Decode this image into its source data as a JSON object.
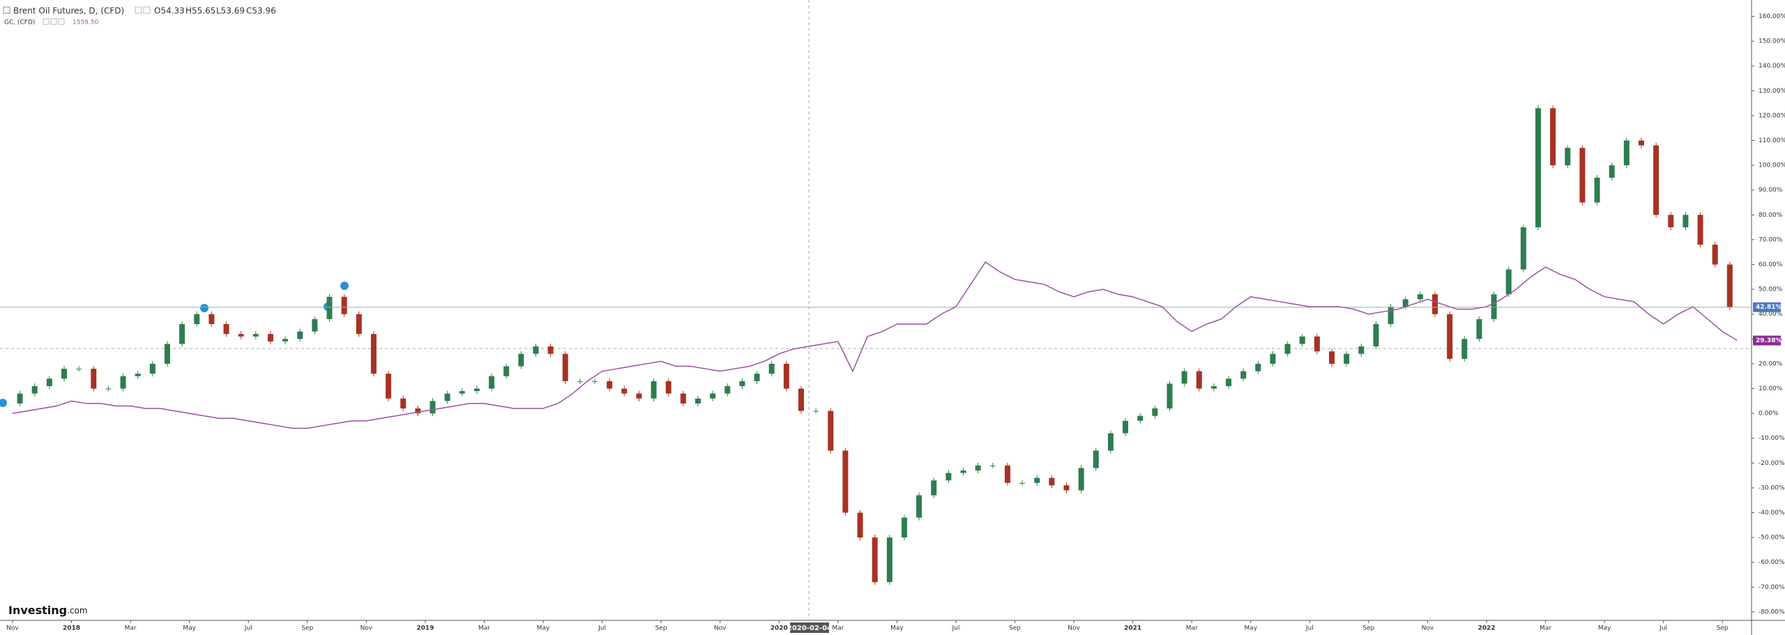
{
  "chart_data": {
    "type": "candle-line",
    "header": {
      "open": "O54.33",
      "high": "H55.65",
      "low": "L53.69",
      "close": "C53.96",
      "gc_last": "1559.50"
    },
    "crosshair_label": "2020-02-04",
    "logo": {
      "brand": "Investing",
      "suffix": ".com"
    },
    "categories": [
      "Nov",
      null,
      null,
      null,
      "2018",
      null,
      null,
      null,
      "Mar",
      null,
      null,
      null,
      "May",
      null,
      null,
      null,
      "Jul",
      null,
      null,
      null,
      "Sep",
      null,
      null,
      null,
      "Nov",
      null,
      null,
      null,
      "2019",
      null,
      null,
      null,
      "Mar",
      null,
      null,
      null,
      "May",
      null,
      null,
      null,
      "Jul",
      null,
      null,
      null,
      "Sep",
      null,
      null,
      null,
      "Nov",
      null,
      null,
      null,
      "2020",
      null,
      null,
      null,
      "Mar",
      null,
      null,
      null,
      "May",
      null,
      null,
      null,
      "Jul",
      null,
      null,
      null,
      "Sep",
      null,
      null,
      null,
      "Nov",
      null,
      null,
      null,
      "2021",
      null,
      null,
      null,
      "Mar",
      null,
      null,
      null,
      "May",
      null,
      null,
      null,
      "Jul",
      null,
      null,
      null,
      "Sep",
      null,
      null,
      null,
      "Nov",
      null,
      null,
      null,
      "2022",
      null,
      null,
      null,
      "Mar",
      null,
      null,
      null,
      "May",
      null,
      null,
      null,
      "Jul",
      null,
      null,
      null,
      "Sep",
      null
    ],
    "series": [
      {
        "name": "Brent Oil Futures, D, (CFD)",
        "up_color": "#2e7d4f",
        "down_color": "#a83224",
        "last_label": "42.81%",
        "label_color": "#4a78c2",
        "values": [
          4,
          8,
          11,
          14,
          18,
          18,
          10,
          10,
          15,
          16,
          20,
          28,
          36,
          40,
          36,
          32,
          31,
          32,
          29,
          30,
          33,
          38,
          47,
          40,
          32,
          16,
          6,
          2,
          0,
          5,
          8,
          9,
          10,
          15,
          19,
          24,
          27,
          24,
          13,
          13,
          13,
          10,
          8,
          6,
          13,
          8,
          4,
          6,
          8,
          11,
          13,
          16,
          20,
          10,
          1,
          1,
          -15,
          -40,
          -50,
          -68,
          -50,
          -42,
          -33,
          -27,
          -24,
          -23,
          -21,
          -21,
          -28,
          -28,
          -26,
          -29,
          -31,
          -22,
          -15,
          -8,
          -3,
          -1,
          2,
          12,
          17,
          10,
          11,
          14,
          17,
          20,
          24,
          28,
          31,
          25,
          20,
          24,
          27,
          36,
          43,
          46,
          48,
          40,
          22,
          30,
          38,
          48,
          58,
          75,
          123,
          100,
          107,
          85,
          95,
          100,
          110,
          108,
          80,
          75,
          80,
          68,
          60,
          42.81
        ]
      },
      {
        "name": "GC, (CFD)",
        "color": "#a05aa8",
        "last_label": "29.38%",
        "label_color": "#8a2d8f",
        "values": [
          0,
          1,
          2,
          3,
          5,
          4,
          4,
          3,
          3,
          2,
          2,
          1,
          0,
          -1,
          -2,
          -2,
          -3,
          -4,
          -5,
          -6,
          -6,
          -5,
          -4,
          -3,
          -3,
          -2,
          -1,
          0,
          1,
          2,
          3,
          4,
          4,
          3,
          2,
          2,
          2,
          4,
          8,
          13,
          17,
          18,
          19,
          20,
          21,
          19,
          19,
          18,
          17,
          18,
          19,
          21,
          24,
          26,
          27,
          28,
          29,
          17,
          31,
          33,
          36,
          36,
          36,
          40,
          43,
          52,
          61,
          57,
          54,
          53,
          52,
          49,
          47,
          49,
          50,
          48,
          47,
          45,
          43,
          37,
          33,
          36,
          38,
          43,
          47,
          46,
          45,
          44,
          43,
          43,
          43,
          42,
          40,
          41,
          42,
          44,
          46,
          44,
          42,
          42,
          43,
          46,
          50,
          55,
          59,
          56,
          54,
          50,
          47,
          46,
          45,
          40,
          36,
          40,
          43,
          38,
          33,
          29.38
        ]
      }
    ],
    "ylim": [
      -83.4,
      166.6
    ],
    "yticks": [
      {
        "value": 160,
        "label": "160.00%"
      },
      {
        "value": 150,
        "label": "150.00%"
      },
      {
        "value": 140,
        "label": "140.00%"
      },
      {
        "value": 130,
        "label": "130.00%"
      },
      {
        "value": 120,
        "label": "120.00%"
      },
      {
        "value": 110,
        "label": "110.00%"
      },
      {
        "value": 100,
        "label": "100.00%"
      },
      {
        "value": 90,
        "label": "90.00%"
      },
      {
        "value": 80,
        "label": "80.00%"
      },
      {
        "value": 70,
        "label": "70.00%"
      },
      {
        "value": 60,
        "label": "60.00%"
      },
      {
        "value": 50,
        "label": "50.00%"
      },
      {
        "value": 40,
        "label": "40.00%"
      },
      {
        "value": 30,
        "label": "30.00%"
      },
      {
        "value": 20,
        "label": "20.00%"
      },
      {
        "value": 10,
        "label": "10.00%"
      },
      {
        "value": 0,
        "label": "0.00%"
      },
      {
        "value": -10,
        "label": "-10.00%"
      },
      {
        "value": -20,
        "label": "-20.00%"
      },
      {
        "value": -30,
        "label": "-30.00%"
      },
      {
        "value": -40,
        "label": "-40.00%"
      },
      {
        "value": -50,
        "label": "-50.00%"
      },
      {
        "value": -60,
        "label": "-60.00%"
      },
      {
        "value": -70,
        "label": "-70.00%"
      },
      {
        "value": -80,
        "label": "-80.00%"
      }
    ],
    "grid": false
  }
}
